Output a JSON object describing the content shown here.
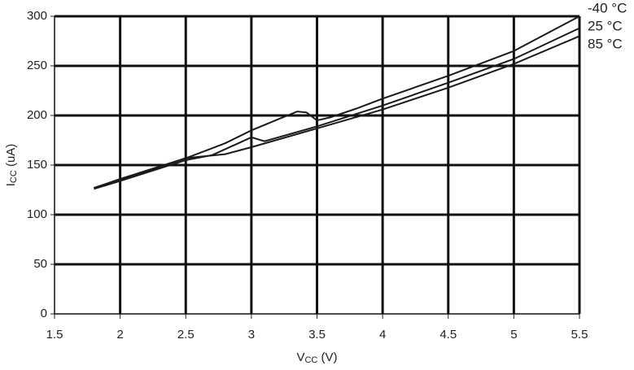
{
  "chart_data": {
    "type": "line",
    "x_label": {
      "main": "V",
      "sub": "CC",
      "unit": " (V)"
    },
    "y_label": {
      "main": "I",
      "sub": "CC",
      "unit": " (uA)"
    },
    "xlim": [
      1.5,
      5.5
    ],
    "xticks": [
      1.5,
      2,
      2.5,
      3,
      3.5,
      4,
      4.5,
      5,
      5.5
    ],
    "ylim": [
      0,
      300
    ],
    "yticks": [
      0,
      50,
      100,
      150,
      200,
      250,
      300
    ],
    "grid": true,
    "series": [
      {
        "name": "-40 °C",
        "color": "#1a1a1a",
        "x": [
          1.8,
          2.0,
          2.5,
          2.8,
          3.0,
          3.2,
          3.35,
          3.42,
          3.5,
          3.6,
          3.8,
          4.0,
          4.5,
          5.0,
          5.5
        ],
        "values": [
          127,
          135,
          157,
          172,
          185,
          196,
          204,
          203,
          195,
          198,
          207,
          217,
          240,
          265,
          300
        ]
      },
      {
        "name": "25 °C",
        "color": "#1a1a1a",
        "x": [
          1.8,
          2.0,
          2.5,
          2.7,
          2.9,
          3.0,
          3.1,
          3.5,
          4.0,
          4.5,
          5.0,
          5.5
        ],
        "values": [
          126,
          134,
          155,
          160,
          172,
          178,
          174,
          189,
          210,
          233,
          257,
          288
        ]
      },
      {
        "name": "85 °C",
        "color": "#1a1a1a",
        "x": [
          1.8,
          2.0,
          2.5,
          2.8,
          3.0,
          3.5,
          4.0,
          4.5,
          5.0,
          5.5
        ],
        "values": [
          127,
          136,
          157,
          161,
          168,
          187,
          206,
          228,
          252,
          280
        ]
      }
    ]
  }
}
